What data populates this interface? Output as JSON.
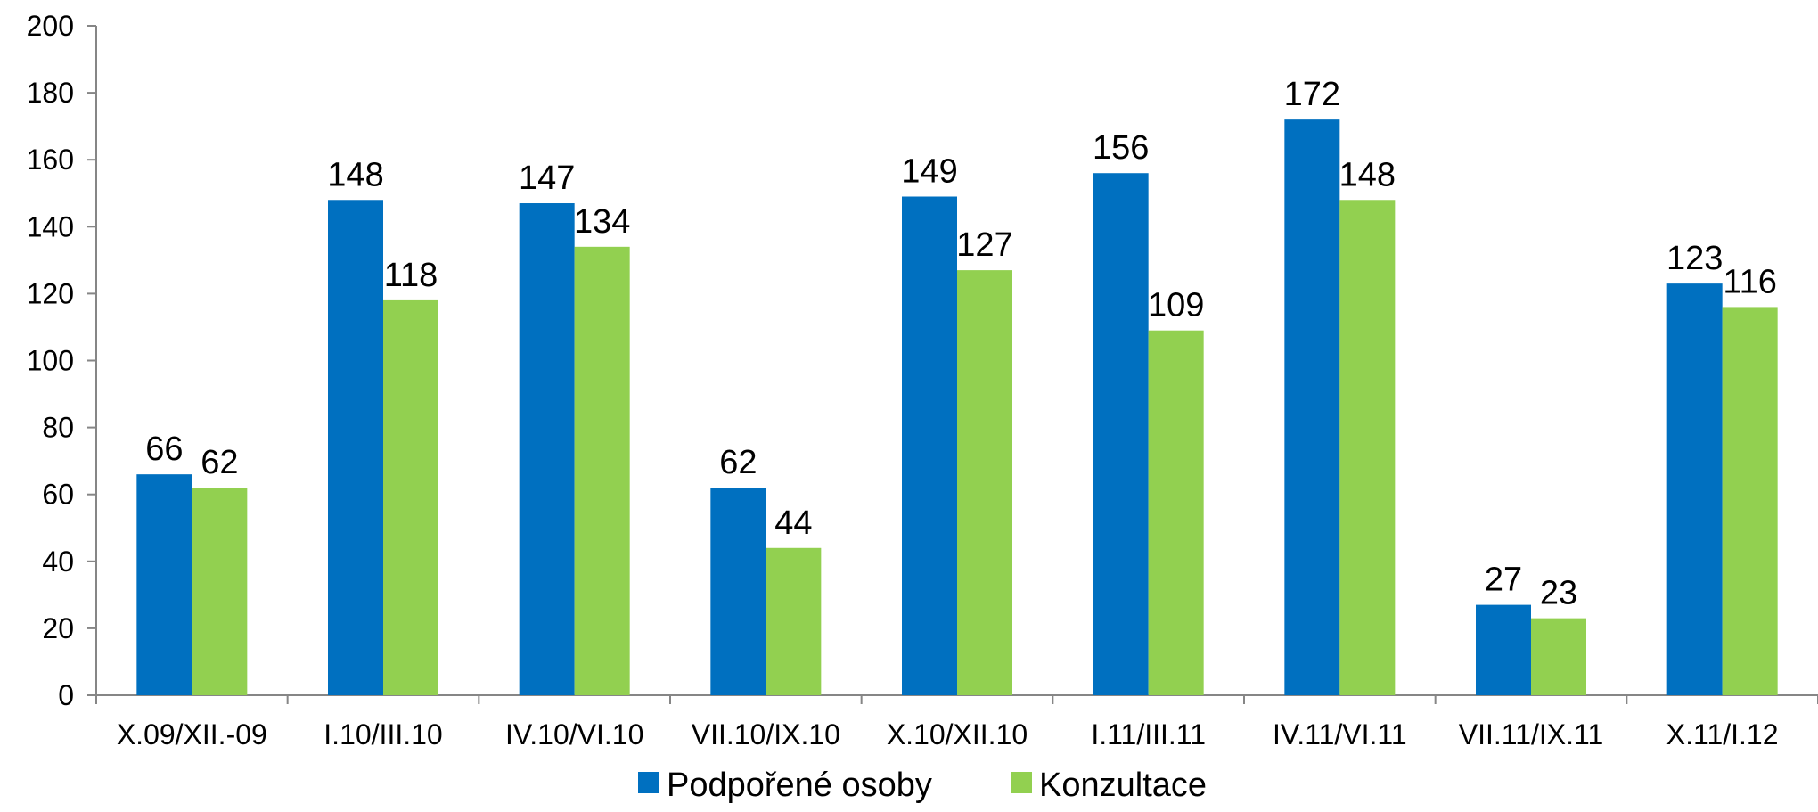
{
  "chart_data": {
    "type": "bar",
    "categories": [
      "X.09/XII.-09",
      "I.10/III.10",
      "IV.10/VI.10",
      "VII.10/IX.10",
      "X.10/XII.10",
      "I.11/III.11",
      "IV.11/VI.11",
      "VII.11/IX.11",
      "X.11/I.12"
    ],
    "series": [
      {
        "name": "Podpořené osoby",
        "color": "#0070C0",
        "values": [
          66,
          148,
          147,
          62,
          149,
          156,
          172,
          27,
          123
        ]
      },
      {
        "name": "Konzultace",
        "color": "#92D050",
        "values": [
          62,
          118,
          134,
          44,
          127,
          109,
          148,
          23,
          116
        ]
      }
    ],
    "title": "",
    "xlabel": "",
    "ylabel": "",
    "ylim": [
      0,
      200
    ],
    "yticks": [
      0,
      20,
      40,
      60,
      80,
      100,
      120,
      140,
      160,
      180,
      200
    ],
    "grid": false,
    "data_labels": true,
    "legend_position": "bottom"
  }
}
